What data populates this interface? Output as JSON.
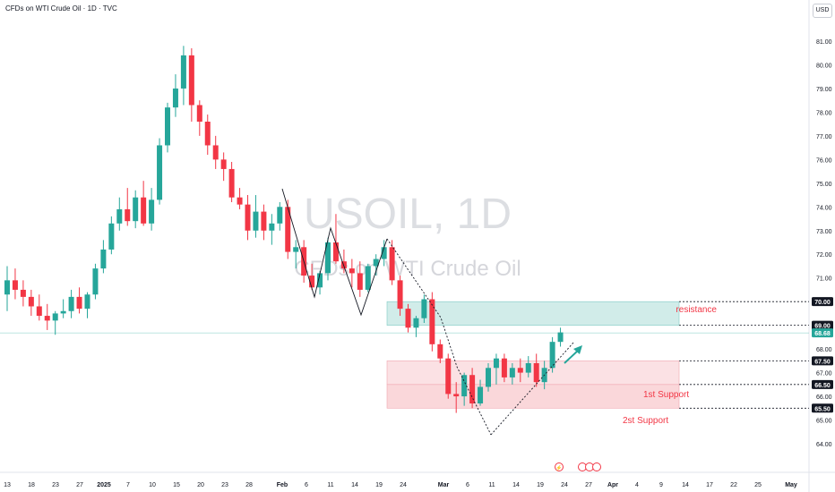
{
  "header": {
    "title": "CFDs on WTI Crude Oil · 1D · TVC",
    "currency": "USD"
  },
  "watermark": {
    "symbol": "USOIL, 1D",
    "name": "CFDs on WTI Crude Oil"
  },
  "colors": {
    "up": "#26a69a",
    "down": "#f23645",
    "resistance_zone": "#b2dfdb",
    "support_zone": "#f8c9ce",
    "resistance_text": "#f23645",
    "current_price": "#26a69a"
  },
  "annotations": {
    "resistance": "resistance",
    "support1": "1st Support",
    "support2": "2st Support"
  },
  "chart_data": {
    "type": "candlestick",
    "y_axis": {
      "min": 64.0,
      "max": 81.0,
      "ticks": [
        "64.00",
        "65.00",
        "66.00",
        "67.00",
        "68.00",
        "69.00",
        "70.00",
        "71.00",
        "72.00",
        "73.00",
        "74.00",
        "75.00",
        "76.00",
        "77.00",
        "78.00",
        "79.00",
        "80.00",
        "81.00"
      ]
    },
    "x_axis": {
      "labels": [
        "13",
        "18",
        "23",
        "27",
        "2025",
        "7",
        "10",
        "15",
        "20",
        "23",
        "28",
        "Feb",
        "6",
        "11",
        "14",
        "19",
        "24",
        "Mar",
        "6",
        "11",
        "14",
        "19",
        "24",
        "27",
        "Apr",
        "4",
        "9",
        "14",
        "17",
        "22",
        "25",
        "May"
      ]
    },
    "price_labels": [
      "70.00",
      "69.00",
      "68.68",
      "67.50",
      "66.50",
      "65.50"
    ],
    "current_price": 68.68,
    "levels": {
      "resistance": [
        69.0,
        70.0
      ],
      "first_support": [
        66.5,
        67.5
      ],
      "second_support": [
        65.5,
        66.5
      ]
    },
    "candles": [
      {
        "o": 70.3,
        "h": 71.5,
        "l": 69.6,
        "c": 70.9
      },
      {
        "o": 70.9,
        "h": 71.4,
        "l": 70.1,
        "c": 70.5
      },
      {
        "o": 70.5,
        "h": 70.9,
        "l": 69.8,
        "c": 70.2
      },
      {
        "o": 70.2,
        "h": 70.5,
        "l": 69.4,
        "c": 69.8
      },
      {
        "o": 69.8,
        "h": 70.3,
        "l": 69.2,
        "c": 69.4
      },
      {
        "o": 69.4,
        "h": 69.9,
        "l": 68.8,
        "c": 69.2
      },
      {
        "o": 69.2,
        "h": 69.6,
        "l": 68.6,
        "c": 69.5
      },
      {
        "o": 69.5,
        "h": 70.1,
        "l": 69.3,
        "c": 69.6
      },
      {
        "o": 69.6,
        "h": 70.5,
        "l": 69.3,
        "c": 70.2
      },
      {
        "o": 70.2,
        "h": 70.6,
        "l": 69.5,
        "c": 69.7
      },
      {
        "o": 69.7,
        "h": 70.4,
        "l": 69.3,
        "c": 70.3
      },
      {
        "o": 70.3,
        "h": 71.6,
        "l": 70.1,
        "c": 71.4
      },
      {
        "o": 71.4,
        "h": 72.6,
        "l": 71.2,
        "c": 72.2
      },
      {
        "o": 72.2,
        "h": 73.6,
        "l": 72.0,
        "c": 73.3
      },
      {
        "o": 73.3,
        "h": 74.4,
        "l": 73.0,
        "c": 73.9
      },
      {
        "o": 73.9,
        "h": 74.8,
        "l": 73.2,
        "c": 73.4
      },
      {
        "o": 73.4,
        "h": 74.7,
        "l": 73.1,
        "c": 74.4
      },
      {
        "o": 74.4,
        "h": 75.1,
        "l": 73.2,
        "c": 73.3
      },
      {
        "o": 73.3,
        "h": 74.8,
        "l": 73.0,
        "c": 74.3
      },
      {
        "o": 74.3,
        "h": 76.9,
        "l": 74.1,
        "c": 76.6
      },
      {
        "o": 76.6,
        "h": 78.4,
        "l": 76.3,
        "c": 78.2
      },
      {
        "o": 78.2,
        "h": 79.6,
        "l": 77.8,
        "c": 79.0
      },
      {
        "o": 79.0,
        "h": 80.8,
        "l": 78.3,
        "c": 80.4
      },
      {
        "o": 80.4,
        "h": 80.7,
        "l": 77.6,
        "c": 78.3
      },
      {
        "o": 78.3,
        "h": 78.5,
        "l": 77.0,
        "c": 77.6
      },
      {
        "o": 77.6,
        "h": 77.9,
        "l": 76.2,
        "c": 76.6
      },
      {
        "o": 76.6,
        "h": 77.0,
        "l": 75.6,
        "c": 76.0
      },
      {
        "o": 76.0,
        "h": 76.3,
        "l": 75.1,
        "c": 75.6
      },
      {
        "o": 75.6,
        "h": 75.9,
        "l": 74.2,
        "c": 74.4
      },
      {
        "o": 74.4,
        "h": 74.8,
        "l": 73.9,
        "c": 74.1
      },
      {
        "o": 74.1,
        "h": 74.5,
        "l": 72.6,
        "c": 73.0
      },
      {
        "o": 73.0,
        "h": 74.5,
        "l": 72.7,
        "c": 73.8
      },
      {
        "o": 73.8,
        "h": 74.1,
        "l": 72.6,
        "c": 73.0
      },
      {
        "o": 73.0,
        "h": 73.7,
        "l": 72.4,
        "c": 73.3
      },
      {
        "o": 73.3,
        "h": 74.2,
        "l": 73.0,
        "c": 74.0
      },
      {
        "o": 74.0,
        "h": 74.3,
        "l": 71.8,
        "c": 72.1
      },
      {
        "o": 72.1,
        "h": 72.6,
        "l": 71.4,
        "c": 72.3
      },
      {
        "o": 72.3,
        "h": 72.6,
        "l": 70.8,
        "c": 71.1
      },
      {
        "o": 71.1,
        "h": 71.6,
        "l": 70.5,
        "c": 70.6
      },
      {
        "o": 70.6,
        "h": 71.3,
        "l": 70.3,
        "c": 71.2
      },
      {
        "o": 71.2,
        "h": 72.7,
        "l": 70.9,
        "c": 72.5
      },
      {
        "o": 72.5,
        "h": 73.7,
        "l": 71.6,
        "c": 71.7
      },
      {
        "o": 71.7,
        "h": 72.2,
        "l": 71.2,
        "c": 71.4
      },
      {
        "o": 71.4,
        "h": 71.8,
        "l": 70.6,
        "c": 71.2
      },
      {
        "o": 71.2,
        "h": 71.7,
        "l": 70.2,
        "c": 70.5
      },
      {
        "o": 70.5,
        "h": 71.6,
        "l": 70.4,
        "c": 71.5
      },
      {
        "o": 71.5,
        "h": 72.0,
        "l": 71.1,
        "c": 71.8
      },
      {
        "o": 71.8,
        "h": 72.6,
        "l": 71.5,
        "c": 72.3
      },
      {
        "o": 72.3,
        "h": 72.6,
        "l": 70.7,
        "c": 70.9
      },
      {
        "o": 70.9,
        "h": 71.1,
        "l": 69.4,
        "c": 69.7
      },
      {
        "o": 69.7,
        "h": 69.9,
        "l": 68.7,
        "c": 68.9
      },
      {
        "o": 68.9,
        "h": 69.4,
        "l": 68.5,
        "c": 69.3
      },
      {
        "o": 69.3,
        "h": 70.3,
        "l": 69.1,
        "c": 70.1
      },
      {
        "o": 70.1,
        "h": 70.4,
        "l": 67.9,
        "c": 68.2
      },
      {
        "o": 68.2,
        "h": 68.4,
        "l": 67.4,
        "c": 67.6
      },
      {
        "o": 67.6,
        "h": 67.8,
        "l": 65.9,
        "c": 66.1
      },
      {
        "o": 66.1,
        "h": 66.6,
        "l": 65.3,
        "c": 66.0
      },
      {
        "o": 66.0,
        "h": 67.0,
        "l": 65.6,
        "c": 66.9
      },
      {
        "o": 66.9,
        "h": 67.2,
        "l": 65.5,
        "c": 65.7
      },
      {
        "o": 65.7,
        "h": 66.7,
        "l": 65.6,
        "c": 66.4
      },
      {
        "o": 66.4,
        "h": 67.4,
        "l": 66.2,
        "c": 67.2
      },
      {
        "o": 67.2,
        "h": 67.8,
        "l": 66.5,
        "c": 67.6
      },
      {
        "o": 67.6,
        "h": 67.8,
        "l": 66.6,
        "c": 66.8
      },
      {
        "o": 66.8,
        "h": 67.4,
        "l": 66.5,
        "c": 67.2
      },
      {
        "o": 67.2,
        "h": 67.6,
        "l": 66.6,
        "c": 67.0
      },
      {
        "o": 67.0,
        "h": 67.7,
        "l": 66.8,
        "c": 67.4
      },
      {
        "o": 67.4,
        "h": 67.8,
        "l": 66.4,
        "c": 66.6
      },
      {
        "o": 66.6,
        "h": 67.5,
        "l": 66.3,
        "c": 67.2
      },
      {
        "o": 67.2,
        "h": 68.5,
        "l": 67.0,
        "c": 68.3
      },
      {
        "o": 68.3,
        "h": 68.9,
        "l": 68.1,
        "c": 68.7
      }
    ]
  }
}
